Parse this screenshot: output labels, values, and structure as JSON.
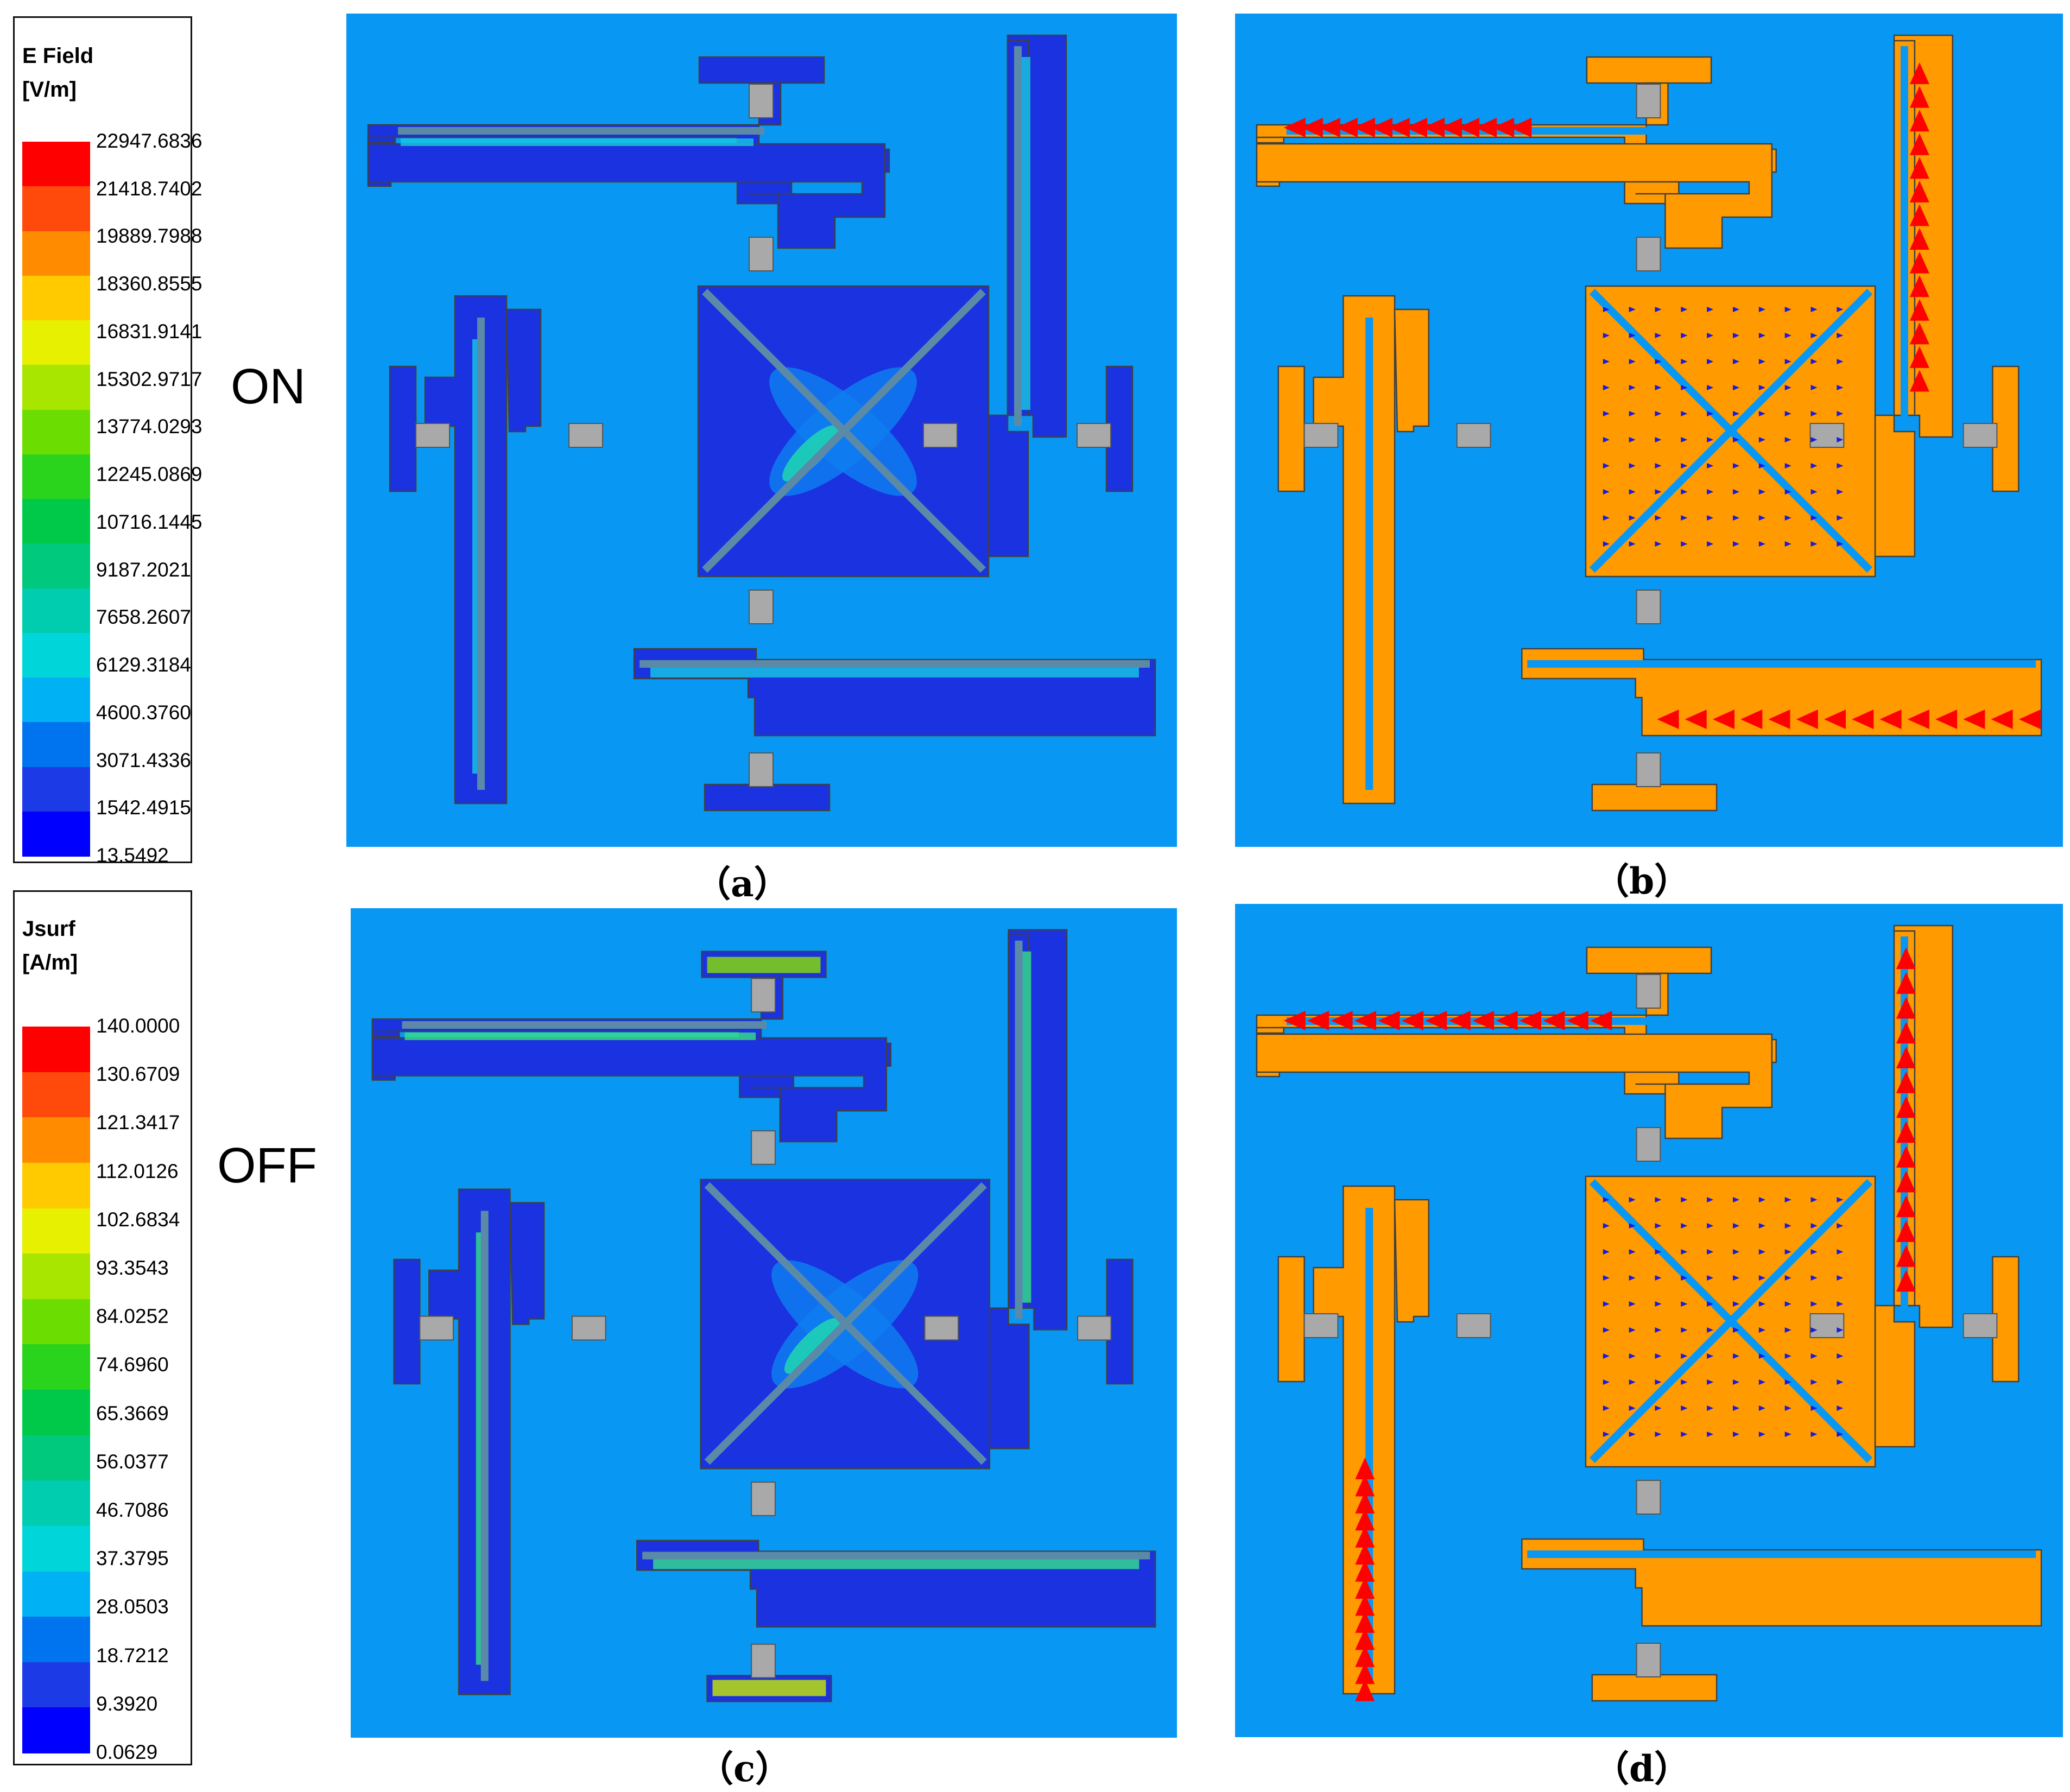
{
  "legends": [
    {
      "title_line1": "E Field",
      "title_line2": "[V/m]",
      "values": [
        "22947.6836",
        "21418.7402",
        "19889.7988",
        "18360.8555",
        "16831.9141",
        "15302.9717",
        "13774.0293",
        "12245.0869",
        "10716.1445",
        "9187.2021",
        "7658.2607",
        "6129.3184",
        "4600.3760",
        "3071.4336",
        "1542.4915",
        "13.5492"
      ]
    },
    {
      "title_line1": "Jsurf",
      "title_line2": "[A/m]",
      "values": [
        "140.0000",
        "130.6709",
        "121.3417",
        "112.0126",
        "102.6834",
        "93.3543",
        "84.0252",
        "74.6960",
        "65.3669",
        "56.0377",
        "46.7086",
        "37.3795",
        "28.0503",
        "18.7212",
        "9.3920",
        "0.0629"
      ]
    }
  ],
  "scale_colors": [
    "#ff0000",
    "#ff4a0c",
    "#ff8c00",
    "#ffca00",
    "#e6f000",
    "#a8e600",
    "#6cdd00",
    "#2ad31c",
    "#00c94a",
    "#00c87c",
    "#00ccb0",
    "#00d6da",
    "#00b2f4",
    "#0074ee",
    "#1c3ae6",
    "#0000ff"
  ],
  "states": {
    "on": "ON",
    "off": "OFF"
  },
  "captions": {
    "a": "（a）",
    "b": "（b）",
    "c": "（c）",
    "d": "（d）"
  },
  "colors": {
    "background": "#0898f4",
    "metal_e_field": "#1a32e0",
    "metal_current": "#ff9a00",
    "switch": "#a9a9a9",
    "arrow_high": "#ff0000",
    "arrow_low": "#1a1ae0"
  }
}
